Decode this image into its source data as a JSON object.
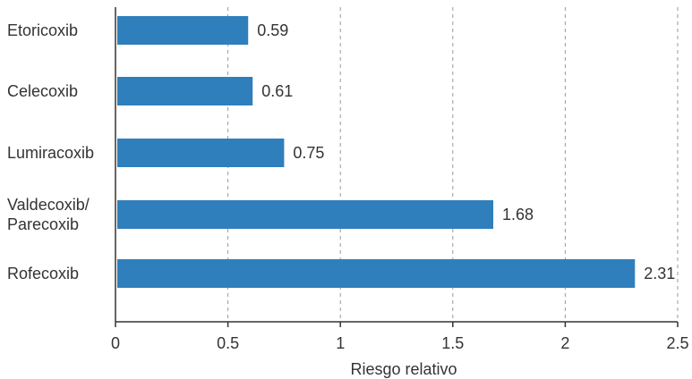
{
  "chart_data": {
    "type": "bar",
    "orientation": "horizontal",
    "categories": [
      [
        "Etoricoxib"
      ],
      [
        "Celecoxib"
      ],
      [
        "Lumiracoxib"
      ],
      [
        "Valdecoxib/",
        "Parecoxib"
      ],
      [
        "Rofecoxib"
      ]
    ],
    "values": [
      0.59,
      0.61,
      0.75,
      1.68,
      2.31
    ],
    "data_labels": [
      "0.59",
      "0.61",
      "0.75",
      "1.68",
      "2.31"
    ],
    "xlabel": "Riesgo relativo",
    "ylabel": "",
    "xlim": [
      0,
      2.5
    ],
    "xticks": [
      0,
      0.5,
      1,
      1.5,
      2,
      2.5
    ],
    "xtick_labels": [
      "0",
      "0.5",
      "1",
      "1.5",
      "2",
      "2.5"
    ],
    "grid": "vertical dashed",
    "legend": "none",
    "bar_color": "#2f7fbc",
    "grid_color": "#9a9a9a",
    "axis_color": "#333333"
  }
}
